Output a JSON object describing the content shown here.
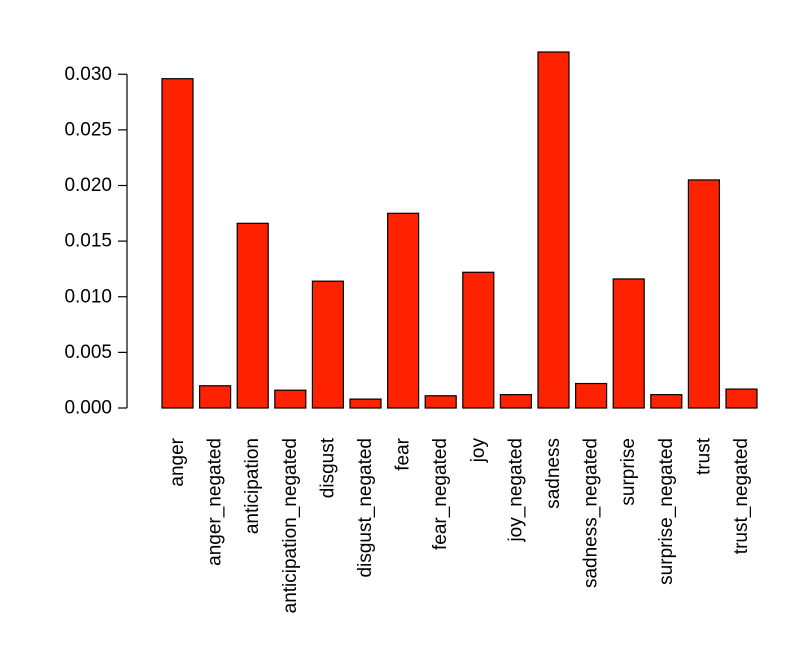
{
  "chart_data": {
    "type": "bar",
    "title": "",
    "xlabel": "",
    "ylabel": "",
    "categories": [
      "anger",
      "anger_negated",
      "anticipation",
      "anticipation_negated",
      "disgust",
      "disgust_negated",
      "fear",
      "fear_negated",
      "joy",
      "joy_negated",
      "sadness",
      "sadness_negated",
      "surprise",
      "surprise_negated",
      "trust",
      "trust_negated"
    ],
    "values": [
      0.0296,
      0.002,
      0.0166,
      0.0016,
      0.0114,
      0.0008,
      0.0175,
      0.0011,
      0.0122,
      0.0012,
      0.032,
      0.0022,
      0.0116,
      0.0012,
      0.0205,
      0.0017
    ],
    "ylim": [
      0,
      0.032
    ],
    "yticks": [
      "0.000",
      "0.005",
      "0.010",
      "0.015",
      "0.020",
      "0.025",
      "0.030"
    ],
    "ytick_values": [
      0,
      0.005,
      0.01,
      0.015,
      0.02,
      0.025,
      0.03
    ],
    "bar_color": "#ff2200",
    "grid": false,
    "legend": "none"
  }
}
